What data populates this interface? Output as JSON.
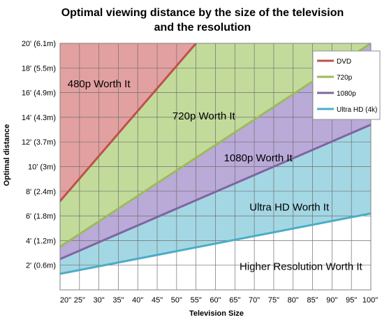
{
  "chart_data": {
    "type": "area",
    "title_lines": [
      "Optimal viewing distance by the size of the television",
      "and the resolution"
    ],
    "xlabel": "Television Size",
    "ylabel": "Optimal distance",
    "x_ticks": [
      "20\"",
      "25\"",
      "30\"",
      "35\"",
      "40\"",
      "45\"",
      "50\"",
      "55\"",
      "60\"",
      "65\"",
      "70\"",
      "75\"",
      "80\"",
      "85\"",
      "90\"",
      "95\"",
      "100\""
    ],
    "y_ticks": [
      "2' (0.6m)",
      "4' (1.2m)",
      "6' (1.8m)",
      "8' (2.4m)",
      "10' (3m)",
      "12' (3.7m)",
      "14' (4.3m)",
      "16' (4.9m)",
      "18' (5.5m)",
      "20' (6.1m)"
    ],
    "xlim": [
      20,
      100
    ],
    "ylim": [
      0,
      20
    ],
    "grid": true,
    "legend_position": "top-right",
    "series": [
      {
        "name": "DVD",
        "color": "#c0504d",
        "fill": "#e3a0a0",
        "x": [
          20,
          55
        ],
        "y": [
          7.2,
          20
        ]
      },
      {
        "name": "720p",
        "color": "#9bbb59",
        "fill": "#c3db9a",
        "x": [
          20,
          100
        ],
        "y": [
          3.5,
          20
        ]
      },
      {
        "name": "1080p",
        "color": "#8064a2",
        "fill": "#b9aad8",
        "x": [
          20,
          100
        ],
        "y": [
          2.5,
          13.4
        ]
      },
      {
        "name": "Ultra HD (4k)",
        "color": "#4bacc6",
        "fill": "#a4d7e4",
        "x": [
          20,
          100
        ],
        "y": [
          1.3,
          6.2
        ]
      }
    ],
    "region_labels": [
      {
        "text": "480p Worth It",
        "x": 30,
        "y": 16.7
      },
      {
        "text": "720p Worth It",
        "x": 57,
        "y": 14.1
      },
      {
        "text": "1080p Worth It",
        "x": 71,
        "y": 10.7
      },
      {
        "text": "Ultra HD Worth It",
        "x": 79,
        "y": 6.7
      },
      {
        "text": "Higher Resolution Worth It",
        "x": 82,
        "y": 1.9
      }
    ]
  }
}
